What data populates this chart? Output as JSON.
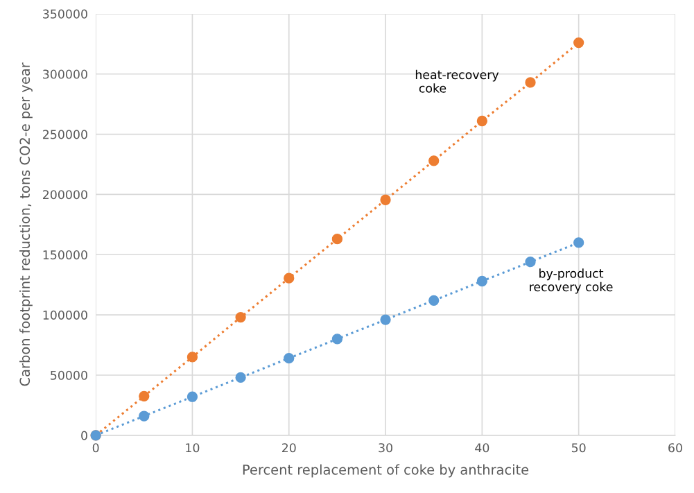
{
  "chart_data": {
    "type": "line",
    "xlabel": "Percent replacement of coke by anthracite",
    "ylabel": "Carbon footprint reduction, tons CO2-e per year",
    "x": [
      0,
      5,
      10,
      15,
      20,
      25,
      30,
      35,
      40,
      45,
      50
    ],
    "series": [
      {
        "name": "heat-recovery\n coke",
        "color": "#ed7d31",
        "values": [
          0,
          32500,
          65000,
          98000,
          130500,
          163000,
          195500,
          228000,
          261000,
          293000,
          326000
        ]
      },
      {
        "name": "by-product\nrecovery coke",
        "color": "#5b9bd5",
        "values": [
          0,
          16000,
          32000,
          48000,
          64000,
          80000,
          96000,
          112000,
          128000,
          144000,
          160000
        ]
      }
    ],
    "xlim": [
      0,
      60
    ],
    "xticks": [
      0,
      10,
      20,
      30,
      40,
      50,
      60
    ],
    "ylim": [
      0,
      350000
    ],
    "yticks": [
      0,
      50000,
      100000,
      150000,
      200000,
      250000,
      300000,
      350000
    ],
    "grid": true,
    "legend": false,
    "marker": "circle",
    "line_style": "dotted"
  }
}
